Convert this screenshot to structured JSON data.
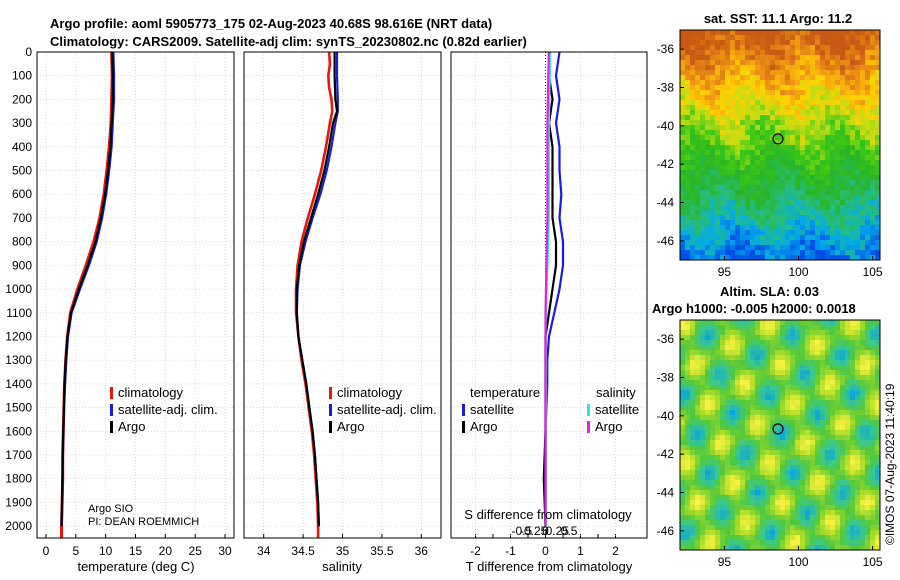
{
  "header": {
    "title_line1": "Argo profile: aoml 5905773_175 02-Aug-2023 40.68S 98.616E (NRT data)",
    "title_line2": "Climatology: CARS2009. Satellite-adj clim: synTS_20230802.nc (0.82d earlier)"
  },
  "colors": {
    "climatology": "#e8170e",
    "satellite": "#1a1ae0",
    "argo": "#000000",
    "sat_cyan": "#36e0e8",
    "argo_magenta": "#e820e0",
    "grid": "#c8c8c8"
  },
  "chart_data": [
    {
      "type": "line",
      "name": "temperature",
      "xlabel": "temperature (deg C)",
      "ylabel": "",
      "xlim": [
        -1.5,
        31.5
      ],
      "ylim": [
        2050,
        0
      ],
      "xticks": [
        "0",
        "5",
        "10",
        "15",
        "20",
        "25",
        "30"
      ],
      "yticks": [
        "0",
        "100",
        "200",
        "300",
        "400",
        "500",
        "600",
        "700",
        "800",
        "900",
        "1000",
        "1100",
        "1200",
        "1300",
        "1400",
        "1500",
        "1600",
        "1700",
        "1800",
        "1900",
        "2000"
      ],
      "legend": [
        "climatology",
        "satellite-adj. clim.",
        "Argo"
      ],
      "annotation": [
        "Argo SIO",
        "PI: DEAN ROEMMICH"
      ],
      "series": [
        {
          "name": "climatology",
          "depth": [
            0,
            100,
            200,
            300,
            400,
            500,
            600,
            700,
            800,
            900,
            1000,
            1100,
            1200,
            1300,
            1400,
            1500,
            1600,
            1700,
            1800,
            1900,
            2000,
            2050
          ],
          "values": [
            11.0,
            11.1,
            11.0,
            10.9,
            10.6,
            10.2,
            9.7,
            9.0,
            8.0,
            6.7,
            5.3,
            4.1,
            3.6,
            3.3,
            3.1,
            3.0,
            2.9,
            2.8,
            2.8,
            2.7,
            2.6,
            2.6
          ]
        },
        {
          "name": "satellite-adj. clim.",
          "depth": [
            0,
            100,
            200,
            300,
            400,
            500,
            600,
            700,
            800,
            900,
            1000,
            1100,
            1200,
            1300,
            1400,
            1500,
            1600,
            1700,
            1800,
            1900,
            2000
          ],
          "values": [
            11.3,
            11.4,
            11.4,
            11.2,
            11.0,
            10.6,
            10.1,
            9.4,
            8.5,
            7.2,
            5.7,
            4.3,
            3.7,
            3.4,
            3.2,
            3.0,
            2.9,
            2.85,
            2.8,
            2.7,
            2.65
          ]
        },
        {
          "name": "Argo",
          "depth": [
            0,
            100,
            200,
            300,
            400,
            500,
            600,
            700,
            800,
            900,
            1000,
            1100,
            1200,
            1300,
            1400,
            1500,
            1600,
            1700,
            1800,
            1900,
            2000
          ],
          "values": [
            11.1,
            11.2,
            11.2,
            11.0,
            10.8,
            10.4,
            9.9,
            9.2,
            8.3,
            7.0,
            5.5,
            4.2,
            3.6,
            3.3,
            3.1,
            3.0,
            2.9,
            2.8,
            2.75,
            2.7,
            2.6
          ]
        }
      ]
    },
    {
      "type": "line",
      "name": "salinity",
      "xlabel": "salinity",
      "xlim": [
        33.75,
        36.25
      ],
      "ylim": [
        2050,
        0
      ],
      "xticks": [
        "34",
        "34.5",
        "35",
        "35.5",
        "36"
      ],
      "legend": [
        "climatology",
        "satellite-adj. clim.",
        "Argo"
      ],
      "series": [
        {
          "name": "climatology",
          "depth": [
            0,
            50,
            100,
            150,
            200,
            250,
            300,
            400,
            500,
            600,
            700,
            800,
            900,
            1000,
            1100,
            1200,
            1300,
            1400,
            1500,
            1600,
            1700,
            1800,
            1900,
            2000,
            2050
          ],
          "values": [
            34.83,
            34.84,
            34.82,
            34.83,
            34.86,
            34.87,
            34.84,
            34.79,
            34.73,
            34.65,
            34.56,
            34.48,
            34.43,
            34.41,
            34.41,
            34.44,
            34.48,
            34.53,
            34.57,
            34.61,
            34.64,
            34.66,
            34.68,
            34.69,
            34.69
          ]
        },
        {
          "name": "satellite-adj. clim.",
          "depth": [
            0,
            100,
            200,
            250,
            300,
            400,
            500,
            600,
            700,
            800,
            900,
            1000,
            1100,
            1200,
            1300,
            1400,
            1500,
            1600,
            1700,
            1800,
            1900,
            2000
          ],
          "values": [
            34.93,
            34.93,
            34.94,
            34.94,
            34.91,
            34.86,
            34.8,
            34.72,
            34.62,
            34.53,
            34.46,
            34.43,
            34.42,
            34.44,
            34.49,
            34.54,
            34.58,
            34.62,
            34.65,
            34.67,
            34.69,
            34.7
          ]
        },
        {
          "name": "Argo",
          "depth": [
            0,
            100,
            200,
            250,
            300,
            400,
            500,
            600,
            700,
            800,
            900,
            1000,
            1100,
            1200,
            1300,
            1400,
            1500,
            1600,
            1700,
            1800,
            1900,
            2000
          ],
          "values": [
            34.9,
            34.9,
            34.91,
            34.93,
            34.88,
            34.83,
            34.77,
            34.69,
            34.6,
            34.51,
            34.45,
            34.42,
            34.42,
            34.44,
            34.49,
            34.54,
            34.58,
            34.62,
            34.65,
            34.67,
            34.69,
            34.7
          ]
        }
      ]
    },
    {
      "type": "line",
      "name": "difference from climatology",
      "xlabel": "T difference from climatology",
      "xlabel_top": "S difference from climatology",
      "xlim": [
        -2.7,
        2.9
      ],
      "ylim": [
        2050,
        0
      ],
      "xticks": [
        "-2",
        "-1.5",
        "-1",
        "-0.5",
        "0",
        "0.5",
        "1",
        "1.5",
        "2"
      ],
      "sticks": [
        "-0.5",
        "-0.25",
        "0",
        "0.25",
        "0.5"
      ],
      "legend_temperature_title": "temperature",
      "legend_salinity_title": "salinity",
      "legend_temperature": [
        "satellite",
        "Argo"
      ],
      "legend_salinity": [
        "satellite",
        "Argo"
      ],
      "series": [
        {
          "name": "T satellite",
          "depth": [
            0,
            100,
            200,
            300,
            400,
            500,
            600,
            700,
            800,
            900,
            1000,
            1100,
            1200,
            1300,
            1400,
            1600,
            1800,
            2000
          ],
          "values": [
            0.4,
            0.3,
            0.4,
            0.3,
            0.4,
            0.4,
            0.45,
            0.4,
            0.5,
            0.5,
            0.4,
            0.25,
            0.1,
            0.05,
            0.05,
            0.0,
            0.0,
            0.0
          ]
        },
        {
          "name": "T Argo",
          "depth": [
            0,
            100,
            200,
            300,
            400,
            500,
            600,
            700,
            800,
            900,
            1000,
            1100,
            1200,
            1300,
            1400,
            1600,
            1800,
            2000
          ],
          "values": [
            0.1,
            0.1,
            0.2,
            0.1,
            0.2,
            0.2,
            0.2,
            0.2,
            0.3,
            0.3,
            0.2,
            0.1,
            0.0,
            0.0,
            0.0,
            0.0,
            -0.05,
            0.0
          ]
        },
        {
          "name": "S satellite",
          "depth": [
            0,
            100,
            200,
            300,
            400,
            500,
            600,
            700,
            800,
            900,
            1000,
            1100,
            1200,
            1300,
            1400,
            1600,
            1800,
            2000
          ],
          "values": [
            0.1,
            0.09,
            0.08,
            0.07,
            0.07,
            0.07,
            0.07,
            0.07,
            0.06,
            0.04,
            0.02,
            0.01,
            0.0,
            0.01,
            0.01,
            0.01,
            0.01,
            0.01
          ]
        },
        {
          "name": "S Argo",
          "depth": [
            0,
            100,
            200,
            300,
            400,
            500,
            600,
            700,
            800,
            900,
            1000,
            1100,
            1200,
            1300,
            1400,
            1600,
            1800,
            2000
          ],
          "values": [
            0.07,
            0.06,
            0.05,
            0.04,
            0.04,
            0.04,
            0.04,
            0.04,
            0.03,
            0.02,
            0.01,
            0.0,
            0.0,
            0.0,
            0.0,
            0.0,
            0.0,
            0.0
          ]
        }
      ]
    },
    {
      "type": "heatmap",
      "name": "sat. SST",
      "title": "sat. SST: 11.1 Argo: 11.2",
      "xlim": [
        92,
        105.5
      ],
      "ylim": [
        -47,
        -35
      ],
      "xticks": [
        "95",
        "100",
        "105"
      ],
      "yticks": [
        "-36",
        "-38",
        "-40",
        "-42",
        "-44",
        "-46"
      ],
      "marker": {
        "lon": 98.616,
        "lat": -40.68
      }
    },
    {
      "type": "heatmap",
      "name": "Altim. SLA",
      "title_line1": "Altim. SLA: 0.03",
      "title_line2": "Argo h1000: -0.005 h2000: 0.0018",
      "xlim": [
        92,
        105.5
      ],
      "ylim": [
        -47,
        -35
      ],
      "xticks": [
        "95",
        "100",
        "105"
      ],
      "yticks": [
        "-36",
        "-38",
        "-40",
        "-42",
        "-44",
        "-46"
      ],
      "marker": {
        "lon": 98.616,
        "lat": -40.68
      }
    }
  ],
  "footer": {
    "credit": "©IMOS 07-Aug-2023 11:40:19"
  }
}
